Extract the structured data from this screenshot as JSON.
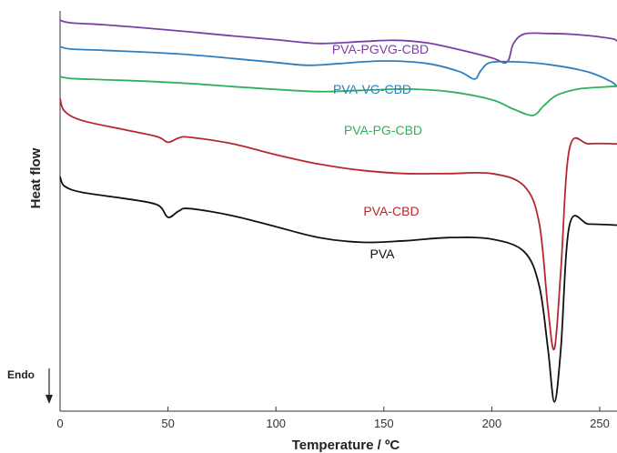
{
  "chart_data": {
    "type": "line",
    "title": "",
    "xlabel": "Temperature / ºC",
    "ylabel": "Heat flow",
    "xlim": [
      0,
      258
    ],
    "xticks": [
      0,
      50,
      100,
      150,
      200,
      250
    ],
    "y_ticks_shown": false,
    "grid": false,
    "legend": "inline labels next to curves",
    "endo_label": "Endo",
    "endo_direction": "down",
    "series": [
      {
        "name": "PVA-PGVG-CBD",
        "color": "#7b3fa6",
        "x": [
          0,
          5,
          20,
          40,
          60,
          80,
          100,
          120,
          140,
          155,
          170,
          185,
          200,
          207,
          210,
          215,
          225,
          240,
          255,
          258
        ],
        "y": [
          100,
          99.2,
          98.6,
          97.5,
          96.3,
          95.0,
          93.8,
          92.6,
          93.2,
          93.6,
          92.8,
          90.6,
          88.0,
          86.6,
          92.5,
          95.6,
          95.8,
          95.4,
          94.2,
          93.4
        ]
      },
      {
        "name": "PVA-VG-CBD",
        "color": "#2e7ebf",
        "x": [
          0,
          5,
          20,
          40,
          60,
          80,
          100,
          115,
          130,
          150,
          170,
          185,
          192,
          195,
          200,
          215,
          230,
          245,
          255,
          258
        ],
        "y": [
          91.6,
          90.8,
          90.4,
          89.8,
          89.0,
          87.8,
          86.5,
          85.6,
          86.2,
          87.0,
          86.2,
          83.6,
          81.2,
          84.0,
          86.6,
          86.6,
          85.5,
          83.4,
          80.5,
          78.9
        ]
      },
      {
        "name": "PVA-PG-CBD",
        "color": "#2fb05a",
        "x": [
          0,
          5,
          20,
          40,
          60,
          80,
          100,
          120,
          140,
          160,
          180,
          200,
          210,
          219,
          224,
          230,
          240,
          250,
          258
        ],
        "y": [
          82.0,
          81.4,
          81.0,
          80.5,
          79.8,
          78.8,
          77.9,
          77.2,
          77.6,
          78.0,
          77.2,
          74.6,
          71.6,
          69.6,
          72.6,
          76.0,
          78.0,
          78.6,
          78.9
        ]
      },
      {
        "name": "PVA-CBD",
        "color": "#b5282e",
        "x": [
          0,
          2,
          10,
          30,
          45,
          50,
          55,
          60,
          80,
          100,
          120,
          140,
          160,
          180,
          200,
          215,
          222,
          226,
          229,
          232,
          236,
          245,
          258
        ],
        "y": [
          75.0,
          71.0,
          68.0,
          65.0,
          62.8,
          61.0,
          62.4,
          62.6,
          60.5,
          57.0,
          54.0,
          52.0,
          51.0,
          51.0,
          51.0,
          47.0,
          35.0,
          8.0,
          -5.0,
          20.0,
          59.0,
          60.5,
          60.5
        ]
      },
      {
        "name": "PVA",
        "color": "#111111",
        "x": [
          0,
          2,
          10,
          30,
          45,
          50,
          55,
          60,
          80,
          100,
          120,
          140,
          160,
          180,
          200,
          215,
          222,
          226,
          229,
          232,
          236,
          245,
          258
        ],
        "y": [
          50.0,
          47.0,
          45.0,
          43.0,
          41.0,
          37.0,
          39.0,
          39.8,
          37.5,
          34.0,
          30.5,
          29.0,
          29.5,
          30.5,
          30.0,
          26.0,
          15.0,
          -5.0,
          -22.0,
          -5.0,
          34.5,
          34.8,
          34.5
        ]
      }
    ]
  }
}
